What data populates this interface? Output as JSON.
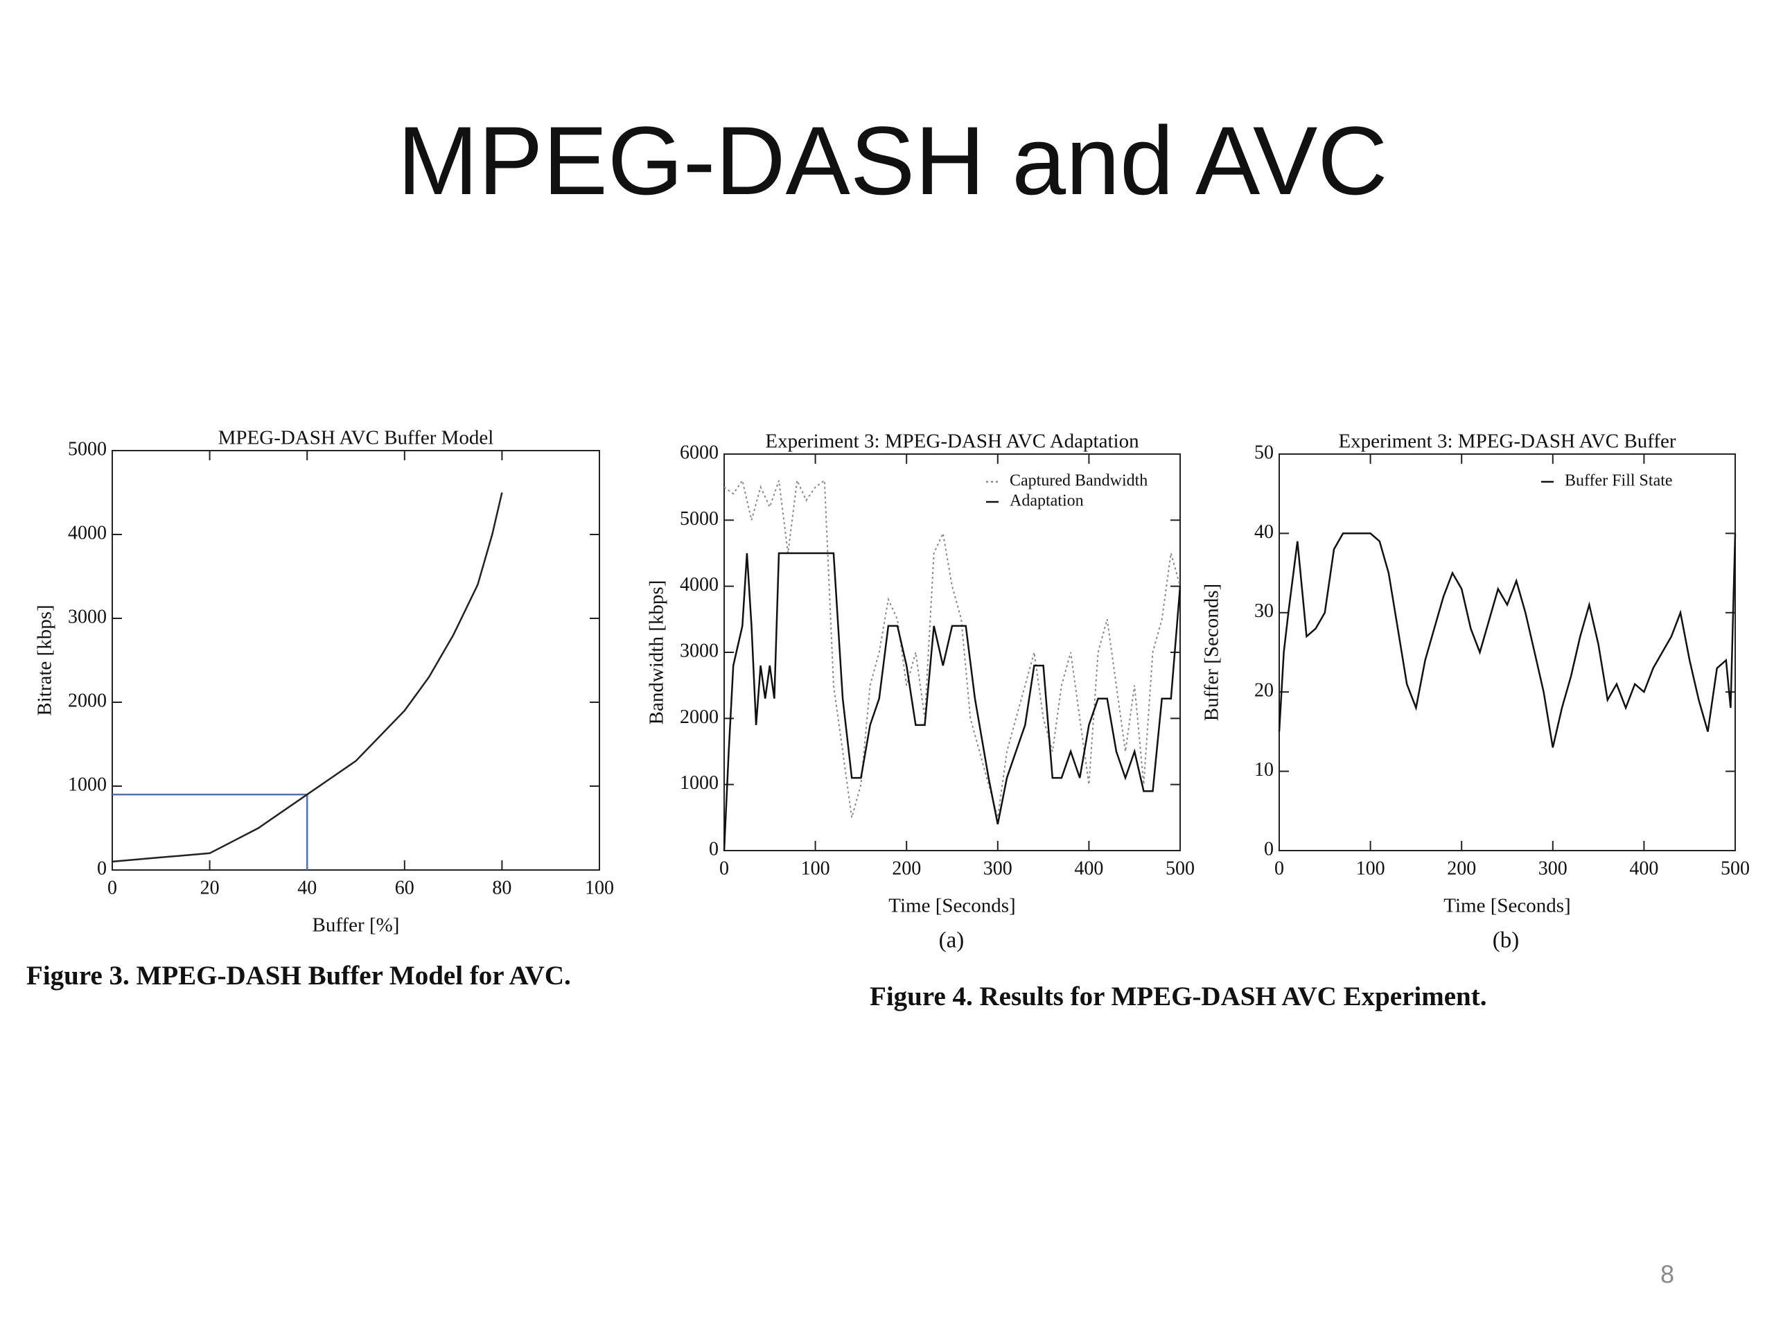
{
  "title": "MPEG-DASH and AVC",
  "captions": [
    "Figure 3. MPEG-DASH Buffer Model for AVC.",
    "Figure 4. Results for MPEG-DASH AVC Experiment."
  ],
  "subfigure_labels": [
    "(a)",
    "(b)"
  ],
  "page_number": "8",
  "chart_data": [
    {
      "type": "line",
      "title": "MPEG-DASH AVC Buffer Model",
      "xlabel": "Buffer [%]",
      "ylabel": "Bitrate [kbps]",
      "xlim": [
        0,
        100
      ],
      "xticks": [
        0,
        20,
        40,
        60,
        80,
        100
      ],
      "ylim": [
        0,
        5000
      ],
      "yticks": [
        0,
        1000,
        2000,
        3000,
        4000,
        5000
      ],
      "series": [
        {
          "color": "#222222",
          "dash": "solid",
          "x": [
            0,
            10,
            20,
            25,
            30,
            35,
            40,
            45,
            50,
            55,
            60,
            65,
            70,
            75,
            78,
            80
          ],
          "values": [
            100,
            150,
            200,
            350,
            500,
            700,
            900,
            1100,
            1300,
            1600,
            1900,
            2300,
            2800,
            3400,
            4000,
            4500
          ]
        }
      ],
      "reference": {
        "x": 40,
        "y": 900,
        "color": "#4472c4"
      }
    },
    {
      "type": "line",
      "title": "Experiment 3: MPEG-DASH AVC Adaptation",
      "xlabel": "Time [Seconds]",
      "ylabel": "Bandwidth [kbps]",
      "xlim": [
        0,
        500
      ],
      "xticks": [
        0,
        100,
        200,
        300,
        400,
        500
      ],
      "ylim": [
        0,
        6000
      ],
      "yticks": [
        0,
        1000,
        2000,
        3000,
        4000,
        5000,
        6000
      ],
      "legend": "upper right",
      "series": [
        {
          "name": "Captured Bandwidth",
          "color": "#888888",
          "dash": "dotted",
          "x": [
            0,
            10,
            20,
            30,
            40,
            50,
            60,
            70,
            80,
            90,
            100,
            110,
            120,
            130,
            140,
            150,
            160,
            170,
            180,
            190,
            200,
            210,
            220,
            230,
            240,
            250,
            260,
            270,
            280,
            290,
            300,
            310,
            320,
            330,
            340,
            350,
            360,
            370,
            380,
            390,
            400,
            410,
            420,
            430,
            440,
            450,
            460,
            470,
            480,
            490,
            500
          ],
          "values": [
            5500,
            5400,
            5600,
            5000,
            5500,
            5200,
            5600,
            4500,
            5600,
            5300,
            5500,
            5600,
            2500,
            1500,
            500,
            1000,
            2500,
            3000,
            3800,
            3500,
            2500,
            3000,
            2000,
            4500,
            4800,
            4000,
            3500,
            2000,
            1500,
            1000,
            500,
            1500,
            2000,
            2500,
            3000,
            2000,
            1500,
            2500,
            3000,
            2000,
            1000,
            3000,
            3500,
            2500,
            1500,
            2500,
            1000,
            3000,
            3500,
            4500,
            4000
          ]
        },
        {
          "name": "Adaptation",
          "color": "#111111",
          "dash": "solid",
          "x": [
            0,
            5,
            10,
            20,
            25,
            30,
            35,
            40,
            45,
            50,
            55,
            60,
            120,
            130,
            140,
            150,
            160,
            170,
            180,
            190,
            200,
            210,
            220,
            230,
            240,
            250,
            265,
            275,
            290,
            300,
            310,
            320,
            330,
            340,
            350,
            360,
            370,
            380,
            390,
            400,
            410,
            420,
            430,
            440,
            450,
            460,
            470,
            480,
            490,
            500
          ],
          "values": [
            0,
            1500,
            2800,
            3400,
            4500,
            3400,
            1900,
            2800,
            2300,
            2800,
            2300,
            4500,
            4500,
            2300,
            1100,
            1100,
            1900,
            2300,
            3400,
            3400,
            2800,
            1900,
            1900,
            3400,
            2800,
            3400,
            3400,
            2300,
            1100,
            400,
            1100,
            1500,
            1900,
            2800,
            2800,
            1100,
            1100,
            1500,
            1100,
            1900,
            2300,
            2300,
            1500,
            1100,
            1500,
            900,
            900,
            2300,
            2300,
            4000
          ]
        }
      ]
    },
    {
      "type": "line",
      "title": "Experiment 3: MPEG-DASH AVC Buffer",
      "xlabel": "Time [Seconds]",
      "ylabel": "Buffer [Seconds]",
      "xlim": [
        0,
        500
      ],
      "xticks": [
        0,
        100,
        200,
        300,
        400,
        500
      ],
      "ylim": [
        0,
        50
      ],
      "yticks": [
        0,
        10,
        20,
        30,
        40,
        50
      ],
      "legend": "upper right",
      "series": [
        {
          "name": "Buffer Fill State",
          "color": "#111111",
          "dash": "solid",
          "x": [
            0,
            5,
            10,
            20,
            30,
            40,
            50,
            60,
            70,
            100,
            110,
            120,
            130,
            140,
            150,
            160,
            170,
            180,
            190,
            200,
            210,
            220,
            230,
            240,
            250,
            260,
            270,
            280,
            290,
            300,
            310,
            320,
            330,
            340,
            350,
            360,
            370,
            380,
            390,
            400,
            410,
            420,
            430,
            440,
            450,
            460,
            470,
            480,
            490,
            495,
            500
          ],
          "values": [
            15,
            25,
            30,
            39,
            27,
            28,
            30,
            38,
            40,
            40,
            39,
            35,
            28,
            21,
            18,
            24,
            28,
            32,
            35,
            33,
            28,
            25,
            29,
            33,
            31,
            34,
            30,
            25,
            20,
            13,
            18,
            22,
            27,
            31,
            26,
            19,
            21,
            18,
            21,
            20,
            23,
            25,
            27,
            30,
            24,
            19,
            15,
            23,
            24,
            18,
            40
          ]
        }
      ]
    }
  ]
}
